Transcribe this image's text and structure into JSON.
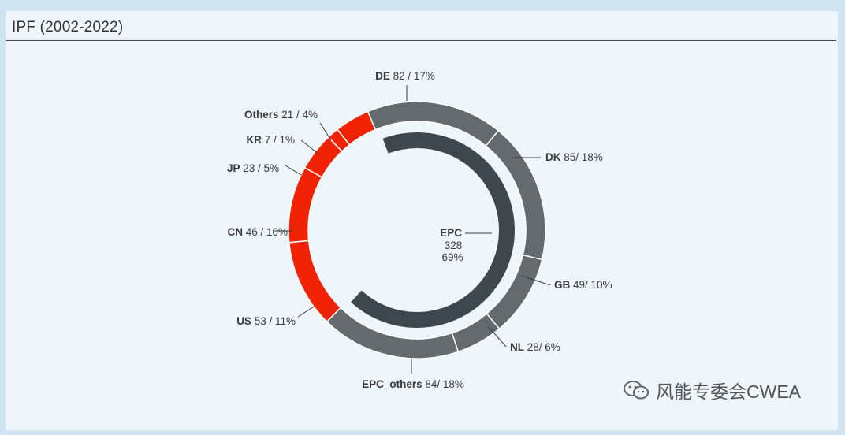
{
  "panel": {
    "title": "IPF (2002-2022)"
  },
  "watermark": {
    "text": "风能专委会CWEA",
    "icon": "wechat-icon"
  },
  "colors": {
    "red": "#f02305",
    "grey": "#646a6d",
    "dark": "#3e474d",
    "background": "#eef6fc"
  },
  "chart_data": {
    "type": "pie",
    "variant": "two-ring donut",
    "title": "IPF (2002-2022)",
    "inner_ring": [
      {
        "label": "EPC",
        "value": 328,
        "percent": "69%",
        "color": "#3e474d"
      }
    ],
    "center_label": {
      "name": "EPC",
      "value": "328",
      "percent": "69%"
    },
    "outer_ring": [
      {
        "name": "DE",
        "value": 82,
        "text": "82 / 17%",
        "color": "#646a6d"
      },
      {
        "name": "DK",
        "value": 85,
        "text": "85/ 18%",
        "color": "#646a6d"
      },
      {
        "name": "GB",
        "value": 49,
        "text": "49/ 10%",
        "color": "#646a6d"
      },
      {
        "name": "NL",
        "value": 28,
        "text": "28/ 6%",
        "color": "#646a6d"
      },
      {
        "name": "EPC_others",
        "value": 84,
        "text": "84/ 18%",
        "color": "#646a6d"
      },
      {
        "name": "US",
        "value": 53,
        "text": "53 / 11%",
        "color": "#f02305"
      },
      {
        "name": "CN",
        "value": 46,
        "text": "46 / 10%",
        "color": "#f02305"
      },
      {
        "name": "JP",
        "value": 23,
        "text": "23 / 5%",
        "color": "#f02305"
      },
      {
        "name": "KR",
        "value": 7,
        "text": "7 / 1%",
        "color": "#f02305"
      },
      {
        "name": "Others",
        "value": 21,
        "text": "21 / 4%",
        "color": "#f02305"
      }
    ]
  }
}
